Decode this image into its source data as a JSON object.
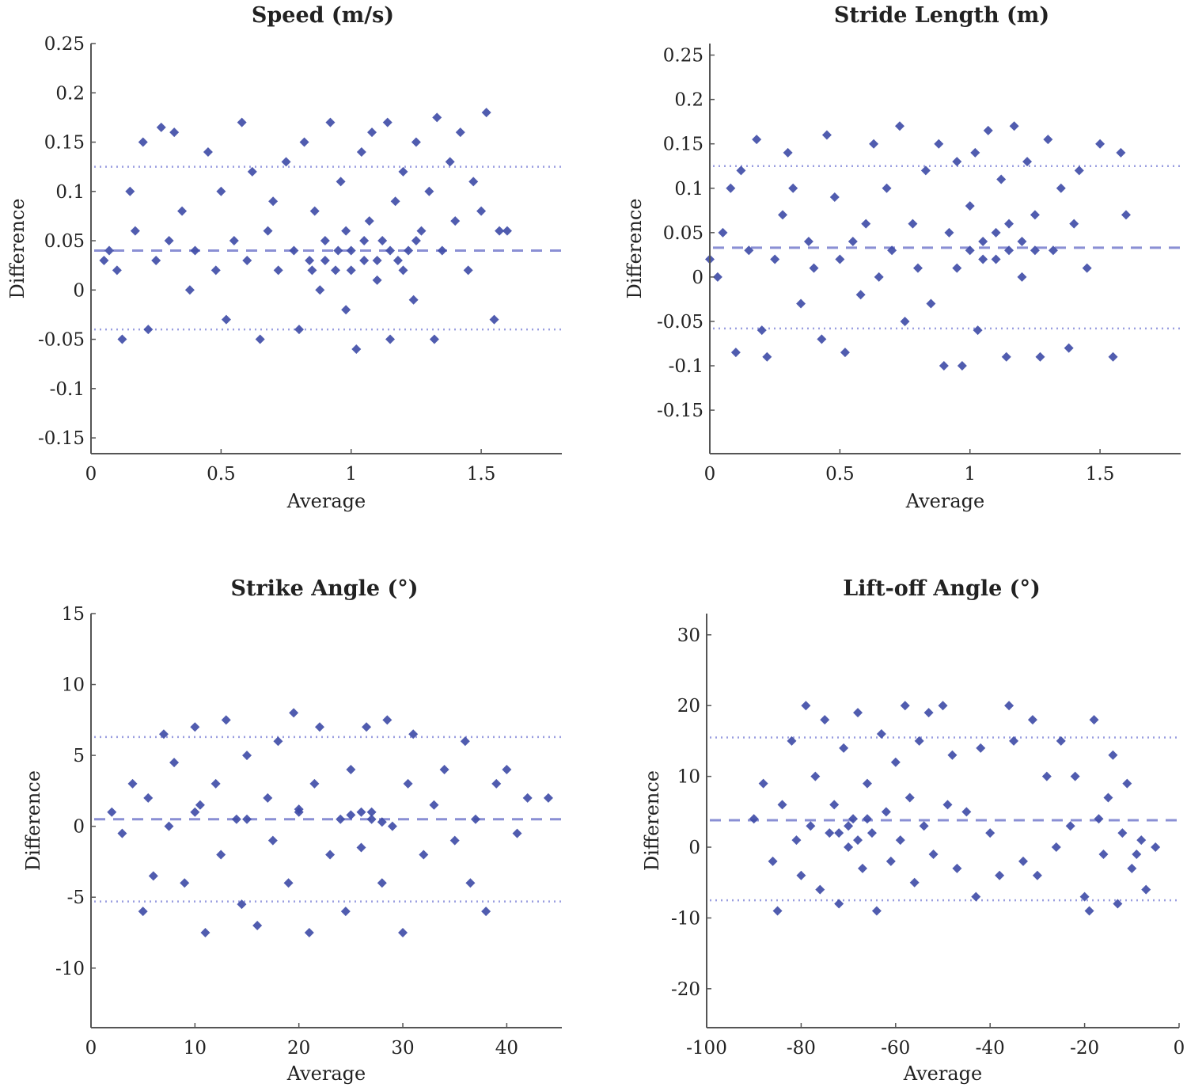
{
  "colors": {
    "points": "#3d4aa6",
    "mean_line": "#8a8fd4",
    "limit_line": "#9a9ee0",
    "axis": "#555555"
  },
  "chart_data": [
    {
      "type": "scatter",
      "title": "Speed (m/s)",
      "xlabel": "Average",
      "ylabel": "Difference",
      "xlim": [
        0,
        1.81
      ],
      "ylim": [
        -0.166,
        0.25
      ],
      "xticks": [
        0,
        0.5,
        1,
        1.5
      ],
      "xtick_labels": [
        "0",
        "0.5",
        "1",
        "1.5"
      ],
      "yticks": [
        -0.15,
        -0.1,
        -0.05,
        0,
        0.05,
        0.1,
        0.15,
        0.2,
        0.25
      ],
      "ytick_labels": [
        "-0.15",
        "-0.1",
        "-0.05",
        "0",
        "0.05",
        "0.1",
        "0.15",
        "0.2",
        "0.25"
      ],
      "grid": false,
      "mean_difference": 0.04,
      "limits_of_agreement": [
        -0.04,
        0.125
      ],
      "points": [
        [
          0.05,
          0.03
        ],
        [
          0.07,
          0.04
        ],
        [
          0.1,
          0.02
        ],
        [
          0.12,
          -0.05
        ],
        [
          0.15,
          0.1
        ],
        [
          0.17,
          0.06
        ],
        [
          0.2,
          0.15
        ],
        [
          0.22,
          -0.04
        ],
        [
          0.25,
          0.03
        ],
        [
          0.27,
          0.165
        ],
        [
          0.3,
          0.05
        ],
        [
          0.32,
          0.16
        ],
        [
          0.35,
          0.08
        ],
        [
          0.38,
          0.0
        ],
        [
          0.4,
          0.04
        ],
        [
          0.45,
          0.14
        ],
        [
          0.48,
          0.02
        ],
        [
          0.5,
          0.1
        ],
        [
          0.52,
          -0.03
        ],
        [
          0.55,
          0.05
        ],
        [
          0.58,
          0.17
        ],
        [
          0.6,
          0.03
        ],
        [
          0.62,
          0.12
        ],
        [
          0.65,
          -0.05
        ],
        [
          0.68,
          0.06
        ],
        [
          0.7,
          0.09
        ],
        [
          0.72,
          0.02
        ],
        [
          0.75,
          0.13
        ],
        [
          0.78,
          0.04
        ],
        [
          0.8,
          -0.04
        ],
        [
          0.82,
          0.15
        ],
        [
          0.84,
          0.03
        ],
        [
          0.86,
          0.08
        ],
        [
          0.88,
          0.0
        ],
        [
          0.9,
          0.05
        ],
        [
          0.92,
          0.17
        ],
        [
          0.94,
          0.02
        ],
        [
          0.96,
          0.11
        ],
        [
          0.98,
          -0.02
        ],
        [
          1.0,
          0.04
        ],
        [
          1.02,
          -0.06
        ],
        [
          1.04,
          0.14
        ],
        [
          1.05,
          0.03
        ],
        [
          1.07,
          0.07
        ],
        [
          1.08,
          0.16
        ],
        [
          1.1,
          0.01
        ],
        [
          1.12,
          0.05
        ],
        [
          1.14,
          0.17
        ],
        [
          1.15,
          -0.05
        ],
        [
          1.17,
          0.09
        ],
        [
          1.18,
          0.03
        ],
        [
          1.2,
          0.12
        ],
        [
          1.22,
          0.04
        ],
        [
          1.24,
          -0.01
        ],
        [
          1.25,
          0.15
        ],
        [
          1.27,
          0.06
        ],
        [
          1.3,
          0.1
        ],
        [
          1.32,
          -0.05
        ],
        [
          1.33,
          0.175
        ],
        [
          1.35,
          0.04
        ],
        [
          1.38,
          0.13
        ],
        [
          1.4,
          0.07
        ],
        [
          1.42,
          0.16
        ],
        [
          1.45,
          0.02
        ],
        [
          1.47,
          0.11
        ],
        [
          1.5,
          0.08
        ],
        [
          1.52,
          0.18
        ],
        [
          1.55,
          -0.03
        ],
        [
          1.57,
          0.06
        ],
        [
          1.6,
          0.06
        ],
        [
          0.95,
          0.04
        ],
        [
          1.0,
          0.02
        ],
        [
          1.05,
          0.05
        ],
        [
          1.1,
          0.03
        ],
        [
          0.9,
          0.03
        ],
        [
          1.15,
          0.04
        ],
        [
          1.2,
          0.02
        ],
        [
          0.85,
          0.02
        ],
        [
          1.25,
          0.05
        ],
        [
          0.98,
          0.06
        ]
      ]
    },
    {
      "type": "scatter",
      "title": "Stride Length (m)",
      "xlabel": "Average",
      "ylabel": "Difference",
      "xlim": [
        0,
        1.81
      ],
      "ylim": [
        -0.199,
        0.263
      ],
      "xticks": [
        0,
        0.5,
        1,
        1.5
      ],
      "xtick_labels": [
        "0",
        "0.5",
        "1",
        "1.5"
      ],
      "yticks": [
        -0.15,
        -0.1,
        -0.05,
        0,
        0.05,
        0.1,
        0.15,
        0.2,
        0.25
      ],
      "ytick_labels": [
        "-0.15",
        "-0.1",
        "-0.05",
        "0",
        "0.05",
        "0.1",
        "0.15",
        "0.2",
        "0.25"
      ],
      "grid": false,
      "mean_difference": 0.033,
      "limits_of_agreement": [
        -0.058,
        0.125
      ],
      "points": [
        [
          0.0,
          0.02
        ],
        [
          0.03,
          0.0
        ],
        [
          0.05,
          0.05
        ],
        [
          0.08,
          0.1
        ],
        [
          0.1,
          -0.085
        ],
        [
          0.12,
          0.12
        ],
        [
          0.15,
          0.03
        ],
        [
          0.18,
          0.155
        ],
        [
          0.2,
          -0.06
        ],
        [
          0.22,
          -0.09
        ],
        [
          0.25,
          0.02
        ],
        [
          0.28,
          0.07
        ],
        [
          0.3,
          0.14
        ],
        [
          0.32,
          0.1
        ],
        [
          0.35,
          -0.03
        ],
        [
          0.38,
          0.04
        ],
        [
          0.4,
          0.01
        ],
        [
          0.43,
          -0.07
        ],
        [
          0.45,
          0.16
        ],
        [
          0.48,
          0.09
        ],
        [
          0.5,
          0.02
        ],
        [
          0.52,
          -0.085
        ],
        [
          0.55,
          0.04
        ],
        [
          0.58,
          -0.02
        ],
        [
          0.6,
          0.06
        ],
        [
          0.63,
          0.15
        ],
        [
          0.65,
          0.0
        ],
        [
          0.68,
          0.1
        ],
        [
          0.7,
          0.03
        ],
        [
          0.73,
          0.17
        ],
        [
          0.75,
          -0.05
        ],
        [
          0.78,
          0.06
        ],
        [
          0.8,
          0.01
        ],
        [
          0.83,
          0.12
        ],
        [
          0.85,
          -0.03
        ],
        [
          0.88,
          0.15
        ],
        [
          0.9,
          -0.1
        ],
        [
          0.92,
          0.05
        ],
        [
          0.95,
          0.13
        ],
        [
          0.97,
          -0.1
        ],
        [
          1.0,
          0.08
        ],
        [
          1.02,
          0.14
        ],
        [
          1.03,
          -0.06
        ],
        [
          1.05,
          0.04
        ],
        [
          1.07,
          0.165
        ],
        [
          1.1,
          0.02
        ],
        [
          1.12,
          0.11
        ],
        [
          1.14,
          -0.09
        ],
        [
          1.15,
          0.06
        ],
        [
          1.17,
          0.17
        ],
        [
          1.2,
          0.0
        ],
        [
          1.22,
          0.13
        ],
        [
          1.25,
          0.07
        ],
        [
          1.27,
          -0.09
        ],
        [
          1.3,
          0.155
        ],
        [
          1.32,
          0.03
        ],
        [
          1.35,
          0.1
        ],
        [
          1.38,
          -0.08
        ],
        [
          1.4,
          0.06
        ],
        [
          1.42,
          0.12
        ],
        [
          1.45,
          0.01
        ],
        [
          1.5,
          0.15
        ],
        [
          1.55,
          -0.09
        ],
        [
          1.58,
          0.14
        ],
        [
          1.6,
          0.07
        ],
        [
          1.0,
          0.03
        ],
        [
          1.05,
          0.02
        ],
        [
          1.1,
          0.05
        ],
        [
          1.15,
          0.03
        ],
        [
          0.95,
          0.01
        ],
        [
          1.2,
          0.04
        ],
        [
          1.25,
          0.03
        ]
      ]
    },
    {
      "type": "scatter",
      "title": "Strike Angle (°)",
      "xlabel": "Average",
      "ylabel": "Difference",
      "xlim": [
        0,
        45.3
      ],
      "ylim": [
        -14.2,
        15
      ],
      "xticks": [
        0,
        10,
        20,
        30,
        40
      ],
      "xtick_labels": [
        "0",
        "10",
        "20",
        "30",
        "40"
      ],
      "yticks": [
        -10,
        -5,
        0,
        5,
        10,
        15
      ],
      "ytick_labels": [
        "-10",
        "-5",
        "0",
        "5",
        "10",
        "15"
      ],
      "grid": false,
      "mean_difference": 0.5,
      "limits_of_agreement": [
        -5.3,
        6.3
      ],
      "points": [
        [
          2,
          1
        ],
        [
          3,
          -0.5
        ],
        [
          4,
          3
        ],
        [
          5,
          -6
        ],
        [
          5.5,
          2
        ],
        [
          6,
          -3.5
        ],
        [
          7,
          6.5
        ],
        [
          7.5,
          0
        ],
        [
          8,
          4.5
        ],
        [
          9,
          -4
        ],
        [
          10,
          7
        ],
        [
          10.5,
          1.5
        ],
        [
          11,
          -7.5
        ],
        [
          12,
          3
        ],
        [
          12.5,
          -2
        ],
        [
          13,
          7.5
        ],
        [
          14,
          0.5
        ],
        [
          14.5,
          -5.5
        ],
        [
          15,
          5
        ],
        [
          16,
          -7
        ],
        [
          17,
          2
        ],
        [
          17.5,
          -1
        ],
        [
          18,
          6
        ],
        [
          19,
          -4
        ],
        [
          19.5,
          8
        ],
        [
          20,
          1
        ],
        [
          21,
          -7.5
        ],
        [
          21.5,
          3
        ],
        [
          22,
          7
        ],
        [
          23,
          -2
        ],
        [
          24,
          0.5
        ],
        [
          24.5,
          -6
        ],
        [
          25,
          4
        ],
        [
          26,
          -1.5
        ],
        [
          26.5,
          7
        ],
        [
          27,
          1
        ],
        [
          28,
          -4
        ],
        [
          28.5,
          7.5
        ],
        [
          29,
          0
        ],
        [
          30,
          -7.5
        ],
        [
          30.5,
          3
        ],
        [
          31,
          6.5
        ],
        [
          32,
          -2
        ],
        [
          33,
          1.5
        ],
        [
          34,
          4
        ],
        [
          35,
          -1
        ],
        [
          36,
          6
        ],
        [
          36.5,
          -4
        ],
        [
          37,
          0.5
        ],
        [
          38,
          -6
        ],
        [
          39,
          3
        ],
        [
          40,
          4
        ],
        [
          41,
          -0.5
        ],
        [
          42,
          2
        ],
        [
          44,
          2
        ],
        [
          27,
          0.5
        ],
        [
          26,
          1
        ],
        [
          28,
          0.3
        ],
        [
          25,
          0.8
        ],
        [
          20,
          1.2
        ],
        [
          15,
          0.5
        ],
        [
          10,
          1
        ]
      ]
    },
    {
      "type": "scatter",
      "title": "Lift-off Angle (°)",
      "xlabel": "Average",
      "ylabel": "Difference",
      "xlim": [
        -100,
        0
      ],
      "ylim": [
        -25.5,
        33
      ],
      "xticks": [
        -100,
        -80,
        -60,
        -40,
        -20,
        0
      ],
      "xtick_labels": [
        "-100",
        "-80",
        "-60",
        "-40",
        "-20",
        "0"
      ],
      "yticks": [
        -20,
        -10,
        0,
        10,
        20,
        30
      ],
      "ytick_labels": [
        "-20",
        "-10",
        "0",
        "10",
        "20",
        "30"
      ],
      "grid": false,
      "mean_difference": 3.8,
      "limits_of_agreement": [
        -7.5,
        15.5
      ],
      "points": [
        [
          -90,
          4
        ],
        [
          -88,
          9
        ],
        [
          -86,
          -2
        ],
        [
          -85,
          -9
        ],
        [
          -84,
          6
        ],
        [
          -82,
          15
        ],
        [
          -81,
          1
        ],
        [
          -80,
          -4
        ],
        [
          -79,
          20
        ],
        [
          -78,
          3
        ],
        [
          -77,
          10
        ],
        [
          -76,
          -6
        ],
        [
          -75,
          18
        ],
        [
          -74,
          2
        ],
        [
          -73,
          6
        ],
        [
          -72,
          -8
        ],
        [
          -71,
          14
        ],
        [
          -70,
          0
        ],
        [
          -69,
          4
        ],
        [
          -68,
          19
        ],
        [
          -67,
          -3
        ],
        [
          -66,
          9
        ],
        [
          -65,
          2
        ],
        [
          -64,
          -9
        ],
        [
          -63,
          16
        ],
        [
          -62,
          5
        ],
        [
          -61,
          -2
        ],
        [
          -60,
          12
        ],
        [
          -59,
          1
        ],
        [
          -58,
          20
        ],
        [
          -57,
          7
        ],
        [
          -56,
          -5
        ],
        [
          -55,
          15
        ],
        [
          -54,
          3
        ],
        [
          -53,
          19
        ],
        [
          -52,
          -1
        ],
        [
          -50,
          20
        ],
        [
          -49,
          6
        ],
        [
          -48,
          13
        ],
        [
          -47,
          -3
        ],
        [
          -45,
          5
        ],
        [
          -43,
          -7
        ],
        [
          -42,
          14
        ],
        [
          -40,
          2
        ],
        [
          -38,
          -4
        ],
        [
          -36,
          20
        ],
        [
          -35,
          15
        ],
        [
          -33,
          -2
        ],
        [
          -31,
          18
        ],
        [
          -30,
          -4
        ],
        [
          -28,
          10
        ],
        [
          -26,
          0
        ],
        [
          -25,
          15
        ],
        [
          -23,
          3
        ],
        [
          -22,
          10
        ],
        [
          -20,
          -7
        ],
        [
          -19,
          -9
        ],
        [
          -18,
          18
        ],
        [
          -17,
          4
        ],
        [
          -16,
          -1
        ],
        [
          -15,
          7
        ],
        [
          -14,
          13
        ],
        [
          -13,
          -8
        ],
        [
          -12,
          2
        ],
        [
          -11,
          9
        ],
        [
          -10,
          -3
        ],
        [
          -9,
          -1
        ],
        [
          -8,
          1
        ],
        [
          -7,
          -6
        ],
        [
          -5,
          0
        ],
        [
          -70,
          3
        ],
        [
          -72,
          2
        ],
        [
          -68,
          1
        ],
        [
          -66,
          4
        ]
      ]
    }
  ]
}
